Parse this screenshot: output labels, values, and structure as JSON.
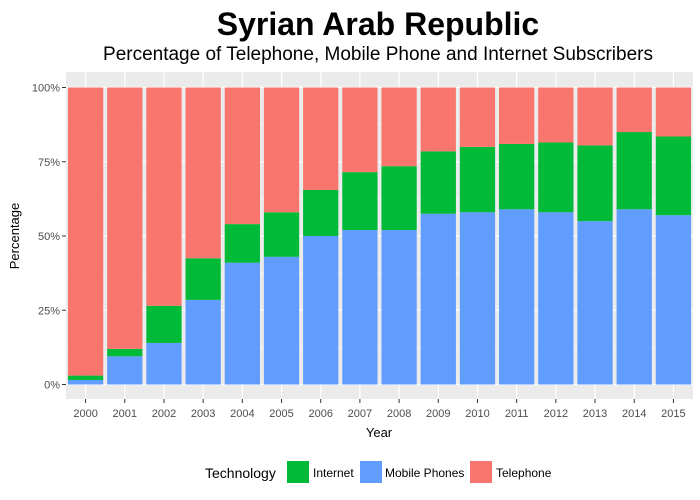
{
  "chart_data": {
    "type": "bar",
    "stacked": true,
    "title": "Syrian Arab Republic",
    "subtitle": "Percentage of Telephone, Mobile Phone and Internet Subscribers",
    "xlabel": "Year",
    "ylabel": "Percentage",
    "ylim": [
      0,
      100
    ],
    "y_ticks": [
      "0%",
      "25%",
      "50%",
      "75%",
      "100%"
    ],
    "grid": true,
    "legend_position": "bottom",
    "legend_title": "Technology",
    "categories": [
      "2000",
      "2001",
      "2002",
      "2003",
      "2004",
      "2005",
      "2006",
      "2007",
      "2008",
      "2009",
      "2010",
      "2011",
      "2012",
      "2013",
      "2014",
      "2015"
    ],
    "series": [
      {
        "name": "Mobile Phones",
        "color": "#619CFF",
        "values": [
          1.5,
          9.5,
          14,
          28.5,
          41,
          43,
          50,
          52,
          52,
          57.5,
          58,
          59,
          58,
          55,
          59,
          57
        ]
      },
      {
        "name": "Internet",
        "color": "#00BA38",
        "values": [
          1.5,
          2.5,
          12.5,
          14,
          13,
          15,
          15.5,
          19.5,
          21.5,
          21,
          22,
          22,
          23.5,
          25.5,
          26,
          26.5
        ]
      },
      {
        "name": "Telephone",
        "color": "#F8766D",
        "values": [
          97,
          88,
          73.5,
          57.5,
          46,
          42,
          34.5,
          28.5,
          26.5,
          21.5,
          20,
          19,
          18.5,
          19.5,
          15,
          16.5
        ]
      }
    ],
    "legend_order": [
      "Internet",
      "Mobile Phones",
      "Telephone"
    ]
  }
}
